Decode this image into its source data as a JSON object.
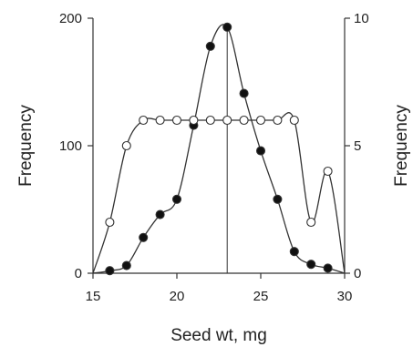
{
  "chart_data": {
    "type": "line",
    "xlabel": "Seed wt, mg",
    "ylabel_left": "Frequency",
    "ylabel_right": "Frequency",
    "xlim": [
      15,
      30
    ],
    "ylim_left": [
      0,
      200
    ],
    "ylim_right": [
      0,
      10
    ],
    "x_ticks": [
      "15",
      "20",
      "25",
      "30"
    ],
    "y_ticks_left": [
      "0",
      "100",
      "200"
    ],
    "y_ticks_right": [
      "0",
      "5",
      "10"
    ],
    "grid": false,
    "series": [
      {
        "marker": "filled-circle",
        "axis": "left",
        "points": [
          [
            16,
            2
          ],
          [
            17,
            6
          ],
          [
            18,
            28
          ],
          [
            19,
            46
          ],
          [
            20,
            58
          ],
          [
            21,
            116
          ],
          [
            22,
            178
          ],
          [
            23,
            193
          ],
          [
            24,
            141
          ],
          [
            25,
            96
          ],
          [
            26,
            58
          ],
          [
            27,
            17
          ],
          [
            28,
            7
          ],
          [
            29,
            4
          ]
        ]
      },
      {
        "marker": "open-circle",
        "axis": "right",
        "points": [
          [
            16,
            2
          ],
          [
            17,
            5
          ],
          [
            18,
            6
          ],
          [
            19,
            6
          ],
          [
            20,
            6
          ],
          [
            21,
            6
          ],
          [
            22,
            6
          ],
          [
            23,
            6
          ],
          [
            24,
            6
          ],
          [
            25,
            6
          ],
          [
            26,
            6
          ],
          [
            27,
            6
          ],
          [
            28,
            2
          ],
          [
            29,
            4
          ]
        ]
      }
    ],
    "vertical_line_x": 23
  }
}
